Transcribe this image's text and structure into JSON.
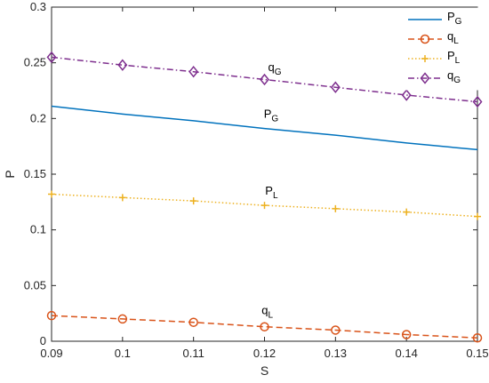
{
  "chart_data": {
    "type": "line",
    "xlabel": "S",
    "ylabel": "P",
    "xlim": [
      0.09,
      0.15
    ],
    "ylim": [
      0,
      0.3
    ],
    "xticks": [
      "0.09",
      "0.1",
      "0.11",
      "0.12",
      "0.13",
      "0.14",
      "0.15"
    ],
    "yticks": [
      "0",
      "0.05",
      "0.1",
      "0.15",
      "0.2",
      "0.25",
      "0.3"
    ],
    "grid": false,
    "legend_position": "top-right",
    "x": [
      0.09,
      0.1,
      0.11,
      0.12,
      0.13,
      0.14,
      0.15
    ],
    "series": [
      {
        "name": "P",
        "subscript": "G",
        "color": "#0072BD",
        "style": "solid",
        "marker": "none",
        "values": [
          0.211,
          0.204,
          0.198,
          0.191,
          0.185,
          0.178,
          0.172
        ]
      },
      {
        "name": "q",
        "subscript": "L",
        "color": "#D95319",
        "style": "dashed",
        "marker": "circle",
        "values": [
          0.023,
          0.02,
          0.017,
          0.013,
          0.01,
          0.006,
          0.003
        ]
      },
      {
        "name": "P",
        "subscript": "L",
        "color": "#EDB120",
        "style": "dotted",
        "marker": "plus",
        "values": [
          0.132,
          0.129,
          0.126,
          0.122,
          0.119,
          0.116,
          0.112
        ]
      },
      {
        "name": "q",
        "subscript": "G",
        "color": "#7E2F8E",
        "style": "dashdot",
        "marker": "diamond",
        "values": [
          0.255,
          0.248,
          0.242,
          0.235,
          0.228,
          0.221,
          0.215
        ]
      }
    ],
    "annotations": [
      {
        "text": "q",
        "subscript": "G",
        "x": 0.1205,
        "y": 0.2425
      },
      {
        "text": "P",
        "subscript": "G",
        "x": 0.1199,
        "y": 0.2008
      },
      {
        "text": "P",
        "subscript": "L",
        "x": 0.1201,
        "y": 0.1315
      },
      {
        "text": "q",
        "subscript": "L",
        "x": 0.1196,
        "y": 0.0245
      }
    ]
  }
}
